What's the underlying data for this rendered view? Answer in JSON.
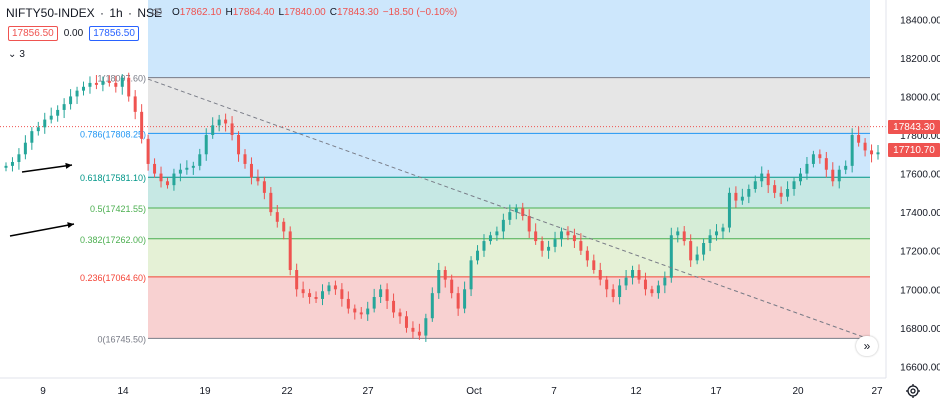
{
  "header": {
    "symbol": "NIFTY50-INDEX",
    "interval": "1h",
    "exchange": "NSE",
    "ohlc": {
      "open_label": "O",
      "open": "17862.10",
      "high_label": "H",
      "high": "17864.40",
      "low_label": "L",
      "low": "17840.00",
      "close_label": "C",
      "close": "17843.30",
      "change": "−18.50 (−0.10%)"
    },
    "sell_price": "17856.50",
    "spread": "0.00",
    "buy_price": "17856.50",
    "indicator_count": "3"
  },
  "scroll_label": "»",
  "colors": {
    "up": "#26a69a",
    "down": "#ef5350",
    "price_line": "#ef5350",
    "last_price_tag": "#ef5350",
    "close_tag": "#ef5350"
  },
  "price_tags": {
    "current": "17843.30",
    "close": "17710.70"
  },
  "chart_data": {
    "type": "candlestick",
    "y_axis": {
      "ticks": [
        18400,
        18200,
        18000,
        17800,
        17600,
        17400,
        17200,
        17000,
        16800,
        16600
      ],
      "range": [
        16540,
        18500
      ]
    },
    "x_axis": {
      "ticks": [
        "9",
        "14",
        "19",
        "22",
        "27",
        "Oct",
        "7",
        "12",
        "17",
        "20",
        "27"
      ]
    },
    "fibonacci": [
      {
        "ratio": "1",
        "label": "1(18097.60)",
        "value": 18097.6
      },
      {
        "ratio": "0.786",
        "label": "0.786(17808.25)",
        "value": 17808.25
      },
      {
        "ratio": "0.618",
        "label": "0.618(17581.10)",
        "value": 17581.1
      },
      {
        "ratio": "0.5",
        "label": "0.5(17421.55)",
        "value": 17421.55
      },
      {
        "ratio": "0.382",
        "label": "0.382(17262.00)",
        "value": 17262.0
      },
      {
        "ratio": "0.236",
        "label": "0.236(17064.60)",
        "value": 17064.6
      },
      {
        "ratio": "0",
        "label": "0(16745.50)",
        "value": 16745.5
      }
    ],
    "trendline": {
      "from": 18090,
      "to": 16740
    },
    "last_price": 17843.3,
    "close_price": 17710.7,
    "closes": [
      17640,
      17660,
      17700,
      17760,
      17820,
      17840,
      17880,
      17900,
      17930,
      17960,
      18000,
      18030,
      18050,
      18070,
      18060,
      18080,
      18070,
      18050,
      18097,
      18000,
      17920,
      17780,
      17650,
      17600,
      17560,
      17540,
      17600,
      17620,
      17630,
      17640,
      17700,
      17800,
      17850,
      17880,
      17860,
      17800,
      17700,
      17650,
      17580,
      17560,
      17500,
      17400,
      17350,
      17300,
      17100,
      17000,
      16980,
      16960,
      16950,
      16990,
      17020,
      17000,
      16950,
      16900,
      16880,
      16870,
      16900,
      16960,
      17000,
      16940,
      16880,
      16860,
      16800,
      16780,
      16760,
      16850,
      16980,
      17100,
      17050,
      16980,
      16900,
      17000,
      17150,
      17200,
      17250,
      17280,
      17300,
      17360,
      17400,
      17420,
      17380,
      17300,
      17250,
      17200,
      17220,
      17260,
      17300,
      17280,
      17250,
      17200,
      17150,
      17100,
      17050,
      17000,
      16960,
      17020,
      17060,
      17100,
      17050,
      17000,
      16980,
      17020,
      17060,
      17280,
      17300,
      17250,
      17150,
      17180,
      17240,
      17280,
      17300,
      17320,
      17500,
      17460,
      17480,
      17520,
      17560,
      17600,
      17540,
      17500,
      17480,
      17520,
      17560,
      17600,
      17650,
      17700,
      17680,
      17620,
      17560,
      17620,
      17640,
      17800,
      17760,
      17720,
      17700,
      17710
    ]
  },
  "annotations": {
    "arrows": 2
  }
}
